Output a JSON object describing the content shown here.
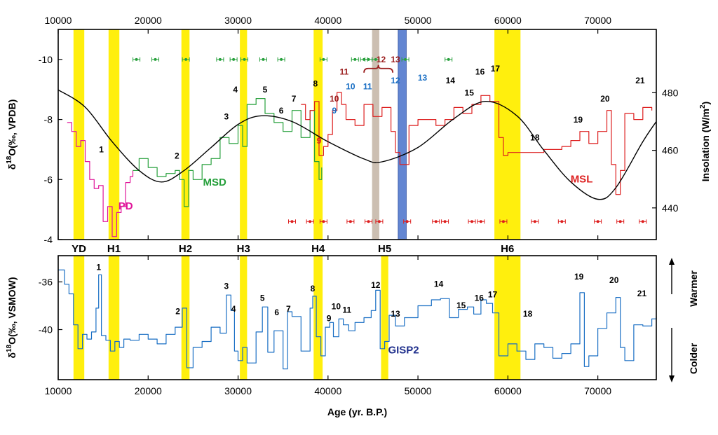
{
  "chart_data": [
    {
      "panel": "top",
      "type": "line",
      "x_axis": {
        "label": "",
        "range": [
          10000,
          76500
        ],
        "ticks": [
          10000,
          20000,
          30000,
          40000,
          50000,
          60000,
          70000
        ],
        "tick_labels": [
          "10000",
          "20000",
          "30000",
          "40000",
          "50000",
          "60000",
          "70000"
        ],
        "position": "top"
      },
      "y_left": {
        "label_parts": [
          "δ",
          "18",
          "O(‰, VPDB)"
        ],
        "range": [
          -4,
          -11
        ],
        "ticks": [
          -10,
          -8,
          -6,
          -4
        ],
        "tick_labels": [
          "-10",
          "-8",
          "-6",
          "-4"
        ]
      },
      "y_right": {
        "label_parts": [
          "Insolation (W/m",
          "2",
          ")"
        ],
        "range": [
          429,
          502
        ],
        "ticks": [
          440,
          460,
          480
        ],
        "tick_labels": [
          "440",
          "460",
          "480"
        ]
      },
      "shaded_bands": [
        {
          "x0": 11700,
          "x1": 12900,
          "color": "#ffee00"
        },
        {
          "x0": 15600,
          "x1": 16800,
          "color": "#ffee00"
        },
        {
          "x0": 23700,
          "x1": 24600,
          "color": "#ffee00"
        },
        {
          "x0": 30200,
          "x1": 31000,
          "color": "#ffee00"
        },
        {
          "x0": 38400,
          "x1": 39400,
          "color": "#ffee00"
        },
        {
          "x0": 44900,
          "x1": 45700,
          "color": "#c9bcae"
        },
        {
          "x0": 47800,
          "x1": 48700,
          "color": "#5b7fd0"
        },
        {
          "x0": 58500,
          "x1": 61400,
          "color": "#ffee00"
        }
      ],
      "series": [
        {
          "name": "PD",
          "color": "#e0169a",
          "x": [
            11000,
            11500,
            12000,
            12500,
            13000,
            13500,
            14000,
            14500,
            15000,
            15500,
            16000,
            16500,
            17000,
            17500,
            18000,
            18300
          ],
          "y": [
            -7.9,
            -7.6,
            -7.1,
            -7.3,
            -6.6,
            -6.0,
            -5.7,
            -5.8,
            -4.6,
            -5.1,
            -4.1,
            -4.9,
            -5.1,
            -5.9,
            -6.1,
            -6.3
          ]
        },
        {
          "name": "MSD",
          "color": "#27a03c",
          "x": [
            18300,
            19000,
            20000,
            21000,
            22000,
            23000,
            23500,
            24000,
            24500,
            25000,
            26000,
            27000,
            28000,
            29000,
            30000,
            30500,
            31000,
            32000,
            33000,
            34000,
            35000,
            36000,
            37000,
            38000,
            38500,
            39000,
            39300
          ],
          "y": [
            -6.3,
            -6.7,
            -6.4,
            -6.1,
            -6.2,
            -6.3,
            -6.0,
            -5.1,
            -6.3,
            -6.0,
            -6.5,
            -6.7,
            -7.4,
            -7.2,
            -7.8,
            -7.1,
            -8.5,
            -8.7,
            -8.2,
            -7.9,
            -7.6,
            -8.3,
            -7.4,
            -8.3,
            -6.6,
            -6.0,
            -6.4
          ]
        },
        {
          "name": "MSL",
          "color": "#dd1e1e",
          "x": [
            37000,
            37500,
            38000,
            38500,
            39000,
            39500,
            40000,
            40500,
            41000,
            41500,
            42000,
            43000,
            44000,
            45000,
            46000,
            47000,
            47500,
            48000,
            49000,
            50000,
            51000,
            52000,
            53000,
            54000,
            55000,
            56000,
            57000,
            58000,
            59000,
            59500,
            60000,
            62000,
            64000,
            66000,
            67000,
            68000,
            69000,
            70000,
            71000,
            71500,
            72000,
            72500,
            73000,
            74000,
            75000,
            76000
          ],
          "y": [
            -8.5,
            -8.0,
            -8.3,
            -8.6,
            -6.8,
            -7.1,
            -7.5,
            -8.3,
            -8.9,
            -8.5,
            -8.0,
            -7.8,
            -8.5,
            -8.1,
            -8.4,
            -7.6,
            -6.9,
            -6.5,
            -7.8,
            -8.0,
            -8.0,
            -7.8,
            -8.0,
            -8.4,
            -8.2,
            -8.5,
            -8.8,
            -8.6,
            -7.4,
            -6.8,
            -6.9,
            -6.9,
            -7.0,
            -7.1,
            -7.3,
            -7.6,
            -7.2,
            -7.6,
            -8.3,
            -6.5,
            -5.5,
            -6.3,
            -8.2,
            -8.0,
            -8.4,
            -8.3
          ]
        },
        {
          "name": "Insolation",
          "color": "#000000",
          "axis": "right",
          "x": [
            10000,
            13000,
            16000,
            19000,
            21500,
            24000,
            27000,
            30000,
            32600,
            36000,
            40000,
            44000,
            46000,
            50000,
            54000,
            57500,
            61000,
            64000,
            67000,
            70000,
            72000,
            75000,
            76500
          ],
          "y": [
            481,
            475,
            463,
            453,
            449,
            453,
            461,
            469,
            472,
            470,
            463,
            457,
            456,
            461,
            471,
            477,
            472,
            460,
            449,
            443,
            447,
            463,
            470
          ]
        }
      ],
      "dating_points": [
        {
          "series": "MSD",
          "y": -10,
          "x": [
            18700,
            20800,
            24200,
            28000,
            29500,
            30700,
            32800,
            34800,
            39500,
            43000,
            44000,
            44500,
            45300,
            48600,
            53400
          ]
        },
        {
          "series": "MSL",
          "y": -4.6,
          "x": [
            36000,
            38000,
            39500,
            42500,
            44500,
            45700,
            48800,
            52000,
            53000,
            56000,
            57000,
            59500,
            63000,
            66000,
            70000,
            72500,
            75000
          ]
        }
      ],
      "series_labels": [
        {
          "text": "PD",
          "x": 17500,
          "y": -5.0,
          "color": "#e0169a"
        },
        {
          "text": "MSD",
          "x": 27400,
          "y": -5.8,
          "color": "#27a03c"
        },
        {
          "text": "MSL",
          "x": 68200,
          "y": -5.9,
          "color": "#dd1e1e"
        }
      ],
      "event_labels": [
        {
          "text": "1",
          "x": 14800,
          "y": -6.9,
          "color": "#000000"
        },
        {
          "text": "2",
          "x": 23200,
          "y": -6.7,
          "color": "#000000"
        },
        {
          "text": "3",
          "x": 28700,
          "y": -8.0,
          "color": "#000000"
        },
        {
          "text": "4",
          "x": 29700,
          "y": -8.9,
          "color": "#000000"
        },
        {
          "text": "5",
          "x": 33000,
          "y": -8.9,
          "color": "#000000"
        },
        {
          "text": "6",
          "x": 34800,
          "y": -8.2,
          "color": "#000000"
        },
        {
          "text": "7",
          "x": 36200,
          "y": -8.6,
          "color": "#000000"
        },
        {
          "text": "8",
          "x": 38600,
          "y": -9.1,
          "color": "#000000"
        },
        {
          "text": "9",
          "x": 39000,
          "y": -7.2,
          "color": "#dd1e1e"
        },
        {
          "text": "10",
          "x": 40700,
          "y": -8.6,
          "color": "#9b1d1d"
        },
        {
          "text": "9",
          "x": 40700,
          "y": -8.2,
          "color": "#1a6fc4"
        },
        {
          "text": "11",
          "x": 41800,
          "y": -9.5,
          "color": "#9b1d1d"
        },
        {
          "text": "10",
          "x": 42500,
          "y": -9.0,
          "color": "#1a6fc4"
        },
        {
          "text": "11",
          "x": 44400,
          "y": -9.0,
          "color": "#1a6fc4"
        },
        {
          "text": "12",
          "x": 45900,
          "y": -9.9,
          "color": "#9b1d1d"
        },
        {
          "text": "12",
          "x": 47500,
          "y": -9.2,
          "color": "#1a6fc4"
        },
        {
          "text": "13",
          "x": 47500,
          "y": -9.9,
          "color": "#9b1d1d"
        },
        {
          "text": "13",
          "x": 50500,
          "y": -9.3,
          "color": "#1a6fc4"
        },
        {
          "text": "14",
          "x": 53600,
          "y": -9.2,
          "color": "#000000"
        },
        {
          "text": "15",
          "x": 55700,
          "y": -8.8,
          "color": "#000000"
        },
        {
          "text": "16",
          "x": 56900,
          "y": -9.5,
          "color": "#000000"
        },
        {
          "text": "17",
          "x": 58600,
          "y": -9.6,
          "color": "#000000"
        },
        {
          "text": "18",
          "x": 63000,
          "y": -7.3,
          "color": "#000000"
        },
        {
          "text": "19",
          "x": 67800,
          "y": -7.9,
          "color": "#000000"
        },
        {
          "text": "20",
          "x": 70800,
          "y": -8.6,
          "color": "#000000"
        },
        {
          "text": "21",
          "x": 74700,
          "y": -9.2,
          "color": "#000000"
        }
      ],
      "brace": {
        "x0": 44000,
        "x1": 47200,
        "y": -9.7,
        "color": "#9b1d1d"
      }
    },
    {
      "panel": "bottom",
      "type": "line",
      "x_axis": {
        "label": "Age (yr. B.P.)",
        "range": [
          10000,
          76500
        ],
        "ticks": [
          10000,
          20000,
          30000,
          40000,
          50000,
          60000,
          70000
        ],
        "tick_labels": [
          "10000",
          "20000",
          "30000",
          "40000",
          "50000",
          "60000",
          "70000"
        ],
        "position": "bottom"
      },
      "y_left": {
        "label_parts": [
          "δ",
          "18",
          "O(‰, VSMOW)"
        ],
        "range": [
          -44.2,
          -33.8
        ],
        "ticks": [
          -36,
          -40
        ],
        "tick_labels": [
          "-36",
          "-40"
        ]
      },
      "direction_labels": {
        "up": "Warmer",
        "down": "Colder"
      },
      "shaded_bands": [
        {
          "label": "YD",
          "x0": 11700,
          "x1": 12900,
          "color": "#ffee00"
        },
        {
          "label": "H1",
          "x0": 15600,
          "x1": 16800,
          "color": "#ffee00"
        },
        {
          "label": "H2",
          "x0": 23700,
          "x1": 24600,
          "color": "#ffee00"
        },
        {
          "label": "H3",
          "x0": 30200,
          "x1": 31000,
          "color": "#ffee00"
        },
        {
          "label": "H4",
          "x0": 38400,
          "x1": 39400,
          "color": "#ffee00"
        },
        {
          "label": "H5",
          "x0": 45900,
          "x1": 46700,
          "color": "#ffee00"
        },
        {
          "label": "H6",
          "x0": 58500,
          "x1": 61400,
          "color": "#ffee00"
        }
      ],
      "series": [
        {
          "name": "GISP2",
          "color": "#1a6fc4",
          "x": [
            10000,
            10700,
            11200,
            11700,
            12200,
            12700,
            13200,
            13700,
            14200,
            14500,
            14800,
            15300,
            15800,
            16300,
            16800,
            17300,
            18000,
            19000,
            20000,
            21000,
            22000,
            23000,
            23800,
            24300,
            25000,
            26000,
            27000,
            28000,
            28700,
            29200,
            29600,
            30000,
            30500,
            31000,
            32000,
            32700,
            33300,
            34000,
            35000,
            35500,
            36000,
            37000,
            38000,
            38300,
            38700,
            39200,
            39700,
            40200,
            40600,
            41200,
            41700,
            42300,
            43000,
            44000,
            44800,
            45300,
            45800,
            46300,
            46800,
            47500,
            48500,
            50000,
            51500,
            52500,
            53500,
            54500,
            55500,
            56200,
            57000,
            57600,
            58300,
            59000,
            60000,
            61000,
            62000,
            63000,
            64000,
            65000,
            66000,
            67000,
            68000,
            68500,
            69000,
            70000,
            71000,
            72000,
            72500,
            73000,
            74000,
            75000,
            76000,
            76500
          ],
          "y": [
            -35.0,
            -36.2,
            -37.0,
            -39.6,
            -41.6,
            -40.4,
            -40.8,
            -40.2,
            -38.2,
            -35.4,
            -40.5,
            -40.9,
            -41.8,
            -41.0,
            -41.5,
            -40.8,
            -40.9,
            -40.4,
            -40.8,
            -41.2,
            -40.4,
            -39.8,
            -38.2,
            -43.2,
            -41.5,
            -41.0,
            -39.8,
            -40.3,
            -37.1,
            -38.4,
            -41.8,
            -42.6,
            -41.5,
            -42.8,
            -40.2,
            -38.1,
            -41.9,
            -40.1,
            -43.3,
            -38.5,
            -38.9,
            -41.8,
            -38.2,
            -37.2,
            -40.6,
            -42.2,
            -39.8,
            -39.4,
            -40.6,
            -39.1,
            -39.6,
            -40.1,
            -39.4,
            -39.0,
            -38.4,
            -36.7,
            -41.6,
            -41.0,
            -38.8,
            -39.7,
            -39.0,
            -38.0,
            -37.5,
            -37.4,
            -39.0,
            -38.3,
            -38.1,
            -38.7,
            -37.5,
            -37.8,
            -38.6,
            -42.2,
            -41.2,
            -41.8,
            -42.5,
            -41.2,
            -41.5,
            -42.4,
            -42.0,
            -41.2,
            -36.9,
            -43.1,
            -42.2,
            -39.9,
            -38.6,
            -37.3,
            -41.5,
            -42.6,
            -39.6,
            -39.7,
            -39.1,
            -38.9
          ]
        }
      ],
      "series_labels": [
        {
          "text": "GISP2",
          "x": 48400,
          "y": -42.0,
          "color": "#1f2f8c"
        }
      ],
      "event_labels": [
        {
          "text": "1",
          "x": 14500,
          "y": -35.0
        },
        {
          "text": "2",
          "x": 23300,
          "y": -38.7
        },
        {
          "text": "3",
          "x": 28700,
          "y": -36.6
        },
        {
          "text": "4",
          "x": 29500,
          "y": -38.5
        },
        {
          "text": "5",
          "x": 32700,
          "y": -37.6
        },
        {
          "text": "6",
          "x": 34300,
          "y": -38.8
        },
        {
          "text": "7",
          "x": 35600,
          "y": -38.5
        },
        {
          "text": "8",
          "x": 38300,
          "y": -36.8
        },
        {
          "text": "9",
          "x": 40100,
          "y": -39.3
        },
        {
          "text": "10",
          "x": 40900,
          "y": -38.3
        },
        {
          "text": "11",
          "x": 42100,
          "y": -38.6
        },
        {
          "text": "12",
          "x": 45300,
          "y": -36.5
        },
        {
          "text": "13",
          "x": 47500,
          "y": -38.9
        },
        {
          "text": "14",
          "x": 52300,
          "y": -36.4
        },
        {
          "text": "15",
          "x": 54800,
          "y": -38.2
        },
        {
          "text": "16",
          "x": 56800,
          "y": -37.6
        },
        {
          "text": "17",
          "x": 58300,
          "y": -37.3
        },
        {
          "text": "18",
          "x": 62200,
          "y": -38.9
        },
        {
          "text": "19",
          "x": 67900,
          "y": -35.8
        },
        {
          "text": "20",
          "x": 71800,
          "y": -36.1
        },
        {
          "text": "21",
          "x": 74900,
          "y": -37.2
        }
      ]
    }
  ]
}
